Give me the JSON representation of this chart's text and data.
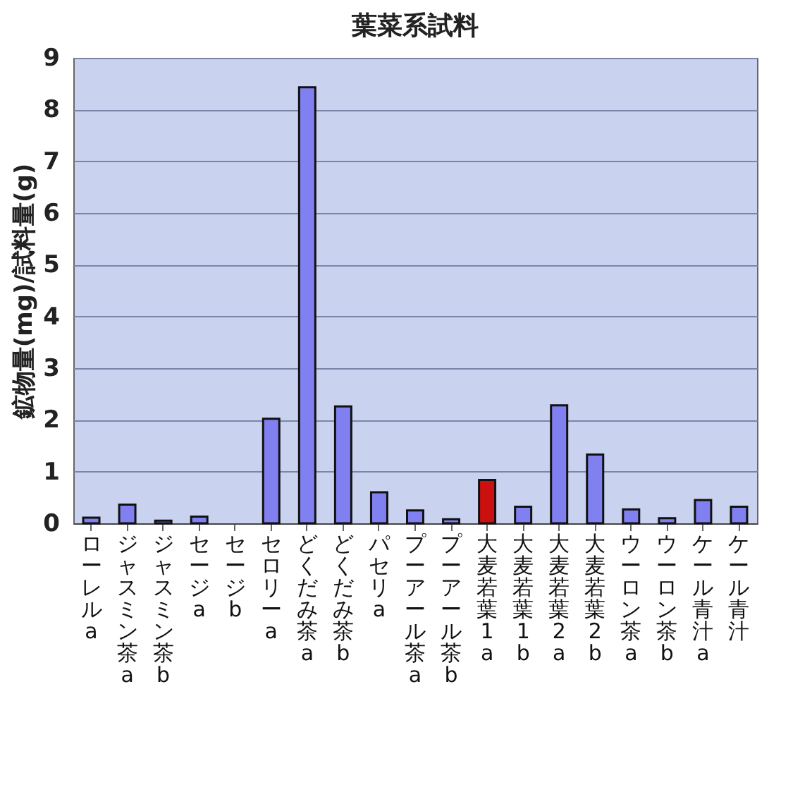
{
  "chart_data": {
    "type": "bar",
    "title": "葉菜系試料",
    "ylabel": "鉱物量(mg)/試料量(g)",
    "categories": [
      "ローレルa",
      "ジャスミン茶a",
      "ジャスミン茶b",
      "セージa",
      "セージb",
      "セロリーa",
      "どくだみ茶a",
      "どくだみ茶b",
      "パセリa",
      "プーアール茶a",
      "プーアール茶b",
      "大麦若葉1a",
      "大麦若葉1b",
      "大麦若葉2a",
      "大麦若葉2b",
      "ウーロン茶a",
      "ウーロン茶b",
      "ケール青汁a",
      "ケール青汁"
    ],
    "values": [
      0.11,
      0.36,
      0.05,
      0.13,
      null,
      2.02,
      8.43,
      2.26,
      0.6,
      0.25,
      0.08,
      0.84,
      0.32,
      2.28,
      1.33,
      0.27,
      0.1,
      0.45,
      0.32
    ],
    "colors": [
      "#8080f0",
      "#8080f0",
      "#8080f0",
      "#8080f0",
      "#8080f0",
      "#8080f0",
      "#8080f0",
      "#8080f0",
      "#8080f0",
      "#8080f0",
      "#8080f0",
      "#cc1010",
      "#8080f0",
      "#8080f0",
      "#8080f0",
      "#8080f0",
      "#8080f0",
      "#8080f0",
      "#8080f0"
    ],
    "ylim": [
      0,
      9
    ],
    "yticks": [
      0,
      1,
      2,
      3,
      4,
      5,
      6,
      7,
      8,
      9
    ],
    "grid": "y"
  }
}
